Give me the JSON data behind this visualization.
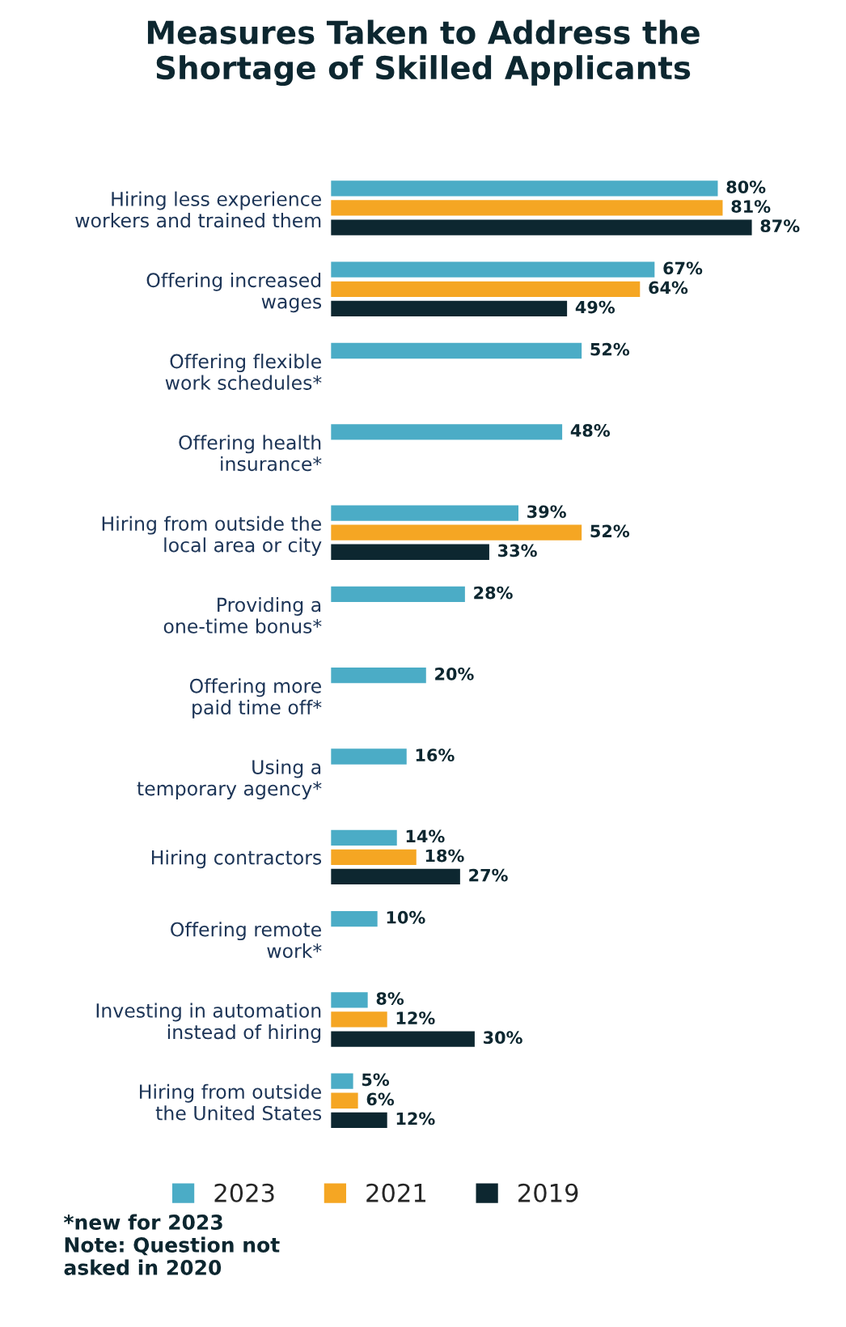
{
  "chart_data": {
    "type": "bar",
    "orientation": "horizontal",
    "title": "Measures Taken to Address the\nShortage of Skilled Applicants",
    "categories": [
      "Hiring less experience\nworkers and trained them",
      "Offering increased\nwages",
      "Offering flexible\nwork schedules*",
      "Offering health\ninsurance*",
      "Hiring from outside the\nlocal area or city",
      "Providing a\none-time bonus*",
      "Offering more\npaid time off*",
      "Using a\ntemporary agency*",
      "Hiring contractors",
      "Offering remote\nwork*",
      "Investing in automation\ninstead of hiring",
      "Hiring from outside\nthe United States"
    ],
    "series": [
      {
        "name": "2023",
        "color": "#4bacc6",
        "values": [
          80,
          67,
          52,
          48,
          39,
          28,
          20,
          16,
          14,
          10,
          8,
          5
        ],
        "value_labels": [
          "80%",
          "67%",
          "52%",
          "48%",
          "39%",
          "28%",
          "20%",
          "16%",
          "14%",
          "10%",
          "8%",
          "5%"
        ]
      },
      {
        "name": "2021",
        "color": "#f5a623",
        "values": [
          81,
          64,
          null,
          null,
          52,
          null,
          null,
          null,
          18,
          null,
          12,
          6
        ],
        "value_labels": [
          "81%",
          "64%",
          null,
          null,
          "52%",
          null,
          null,
          null,
          "18%",
          null,
          "12%",
          "6%"
        ]
      },
      {
        "name": "2019",
        "color": "#0d2730",
        "values": [
          87,
          49,
          null,
          null,
          33,
          null,
          null,
          null,
          27,
          null,
          30,
          12
        ],
        "value_labels": [
          "87%",
          "49%",
          null,
          null,
          "33%",
          null,
          null,
          null,
          "27%",
          null,
          "30%",
          "12%"
        ]
      }
    ],
    "tick_labels": "y",
    "grid": false,
    "legend": "bottom",
    "annotations": [
      "*new for 2023\nNote: Question not\nasked in 2020"
    ]
  }
}
